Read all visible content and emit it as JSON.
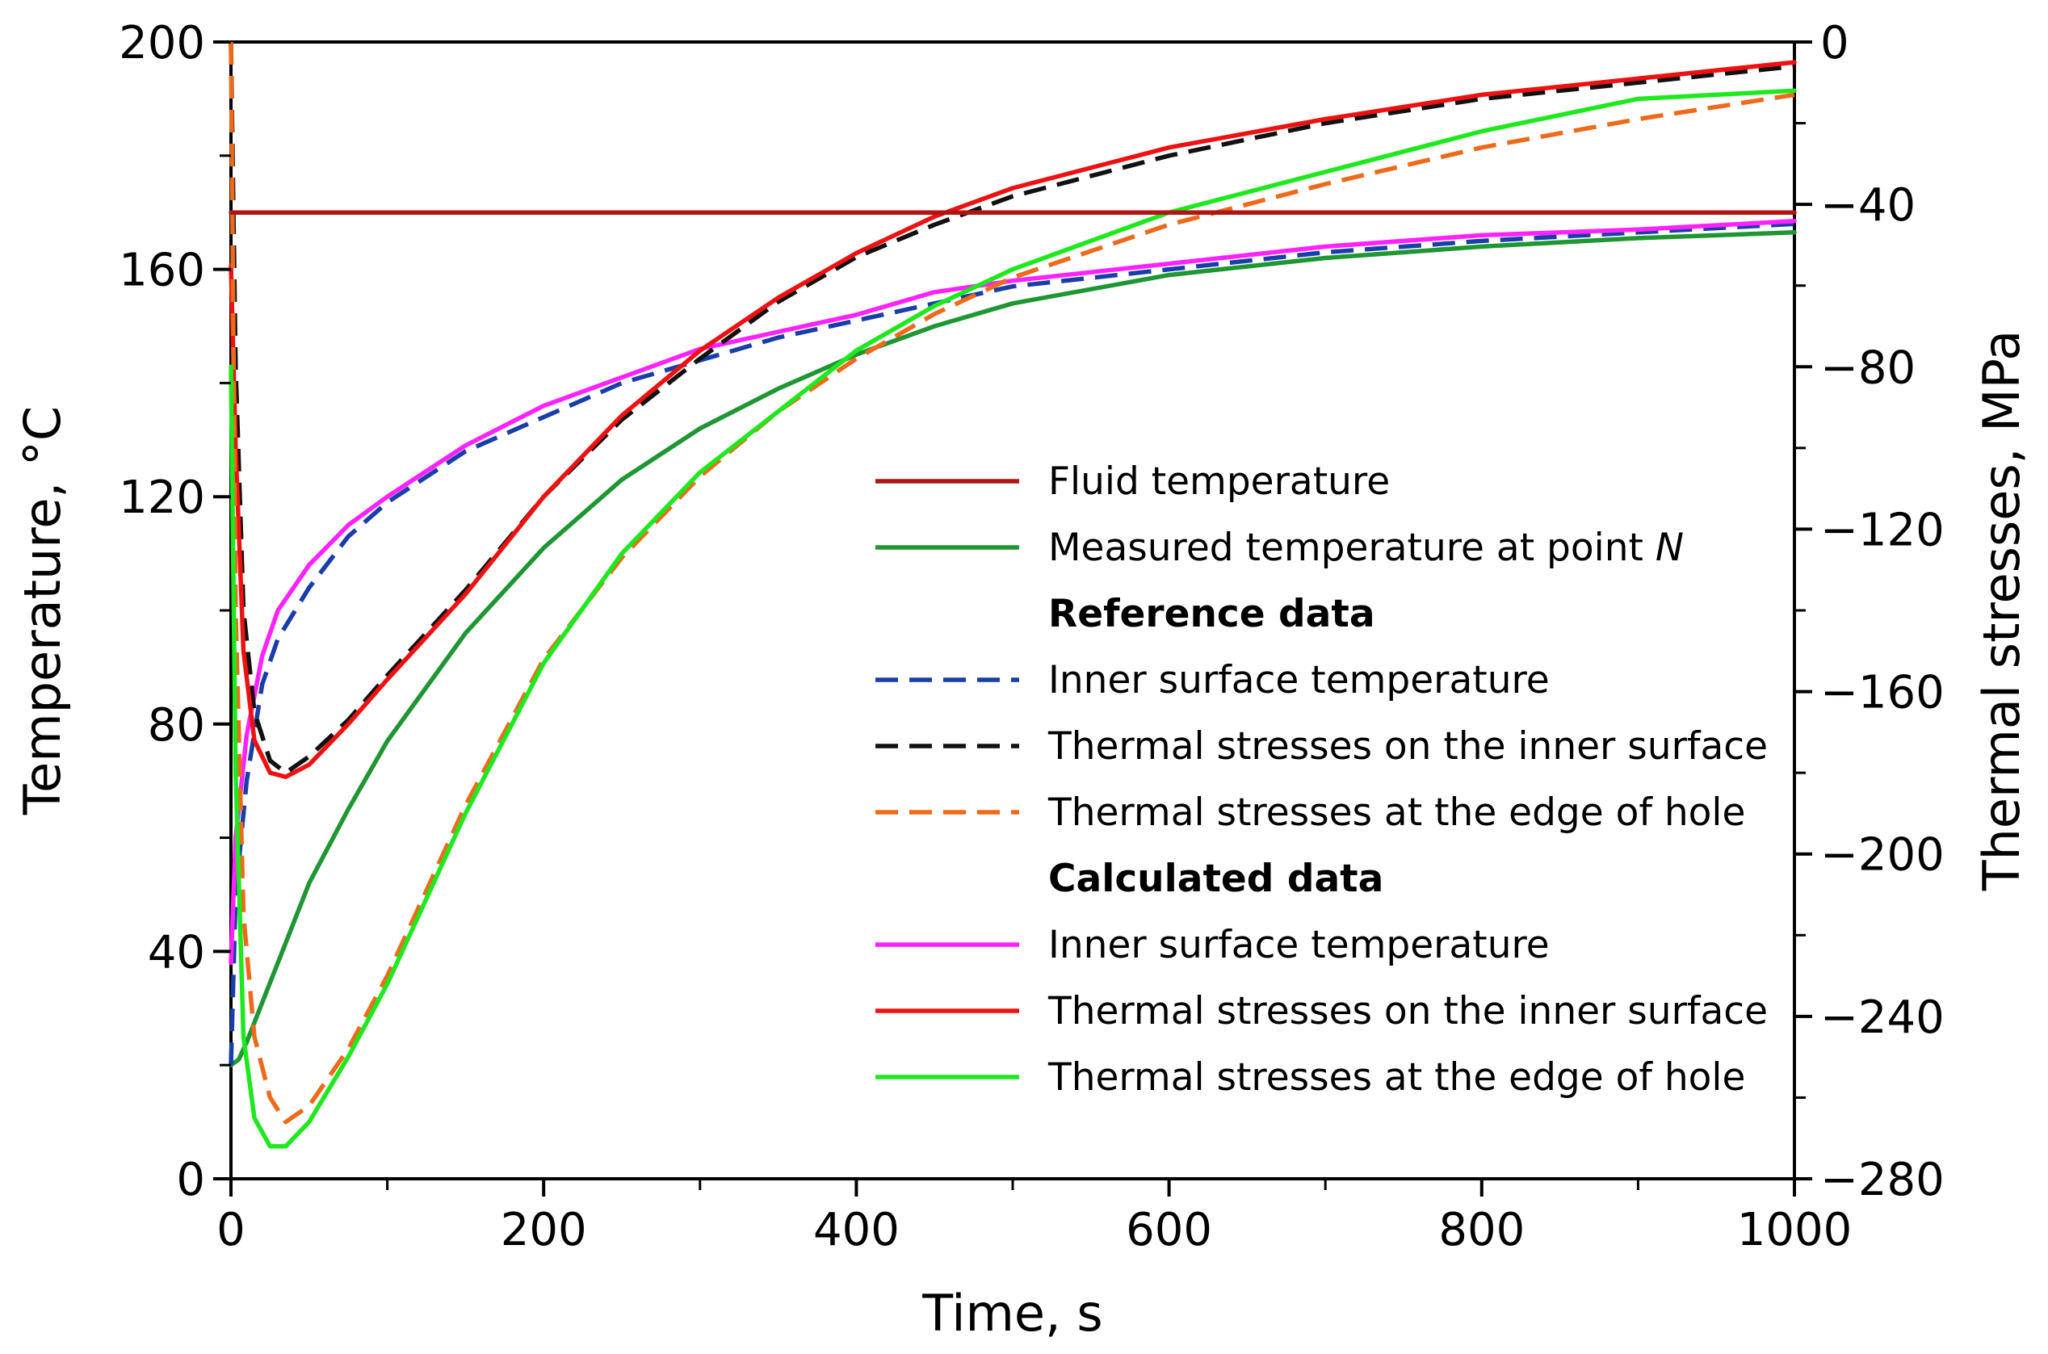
{
  "chart_data": {
    "type": "line",
    "title": "",
    "xlabel": "Time, s",
    "ylabel_left": "Temperature, °C",
    "ylabel_right": "Thermal stresses, MPa",
    "xlim": [
      0,
      1000
    ],
    "ylim_left": [
      0,
      200
    ],
    "ylim_right": [
      -280,
      0
    ],
    "x_ticks": [
      "0",
      "200",
      "400",
      "600",
      "800",
      "1000"
    ],
    "x_tick_values": [
      0,
      200,
      400,
      600,
      800,
      1000
    ],
    "y_left_ticks": [
      "0",
      "40",
      "80",
      "120",
      "160",
      "200"
    ],
    "y_left_tick_values": [
      0,
      40,
      80,
      120,
      160,
      200
    ],
    "y_right_ticks": [
      "−280",
      "−240",
      "−200",
      "−160",
      "−120",
      "−80",
      "−40",
      "0"
    ],
    "y_right_tick_values": [
      -280,
      -240,
      -200,
      -160,
      -120,
      -80,
      -40,
      0
    ],
    "grid": false,
    "legend_position": "center-right",
    "legend": [
      {
        "kind": "entry",
        "series": "fluid",
        "label": "Fluid temperature"
      },
      {
        "kind": "entry",
        "series": "measured",
        "label": "Measured temperature at point ",
        "label_italic": "N"
      },
      {
        "kind": "heading",
        "label": "Reference data"
      },
      {
        "kind": "entry",
        "series": "ref_inner_temp",
        "label": "Inner surface temperature"
      },
      {
        "kind": "entry",
        "series": "ref_stress_inner",
        "label": "Thermal stresses on the inner surface"
      },
      {
        "kind": "entry",
        "series": "ref_stress_hole",
        "label": "Thermal stresses at the edge of hole"
      },
      {
        "kind": "heading",
        "label": "Calculated data"
      },
      {
        "kind": "entry",
        "series": "calc_inner_temp",
        "label": "Inner surface temperature"
      },
      {
        "kind": "entry",
        "series": "calc_stress_inner",
        "label": "Thermal stresses on the inner surface"
      },
      {
        "kind": "entry",
        "series": "calc_stress_hole",
        "label": "Thermal stresses at the edge of hole"
      }
    ],
    "series": [
      {
        "id": "fluid",
        "name": "Fluid temperature",
        "axis": "left",
        "color": "#b01515",
        "dash": "solid",
        "x": [
          0,
          1000
        ],
        "y": [
          170,
          170
        ]
      },
      {
        "id": "measured",
        "name": "Measured temperature at point N",
        "axis": "left",
        "color": "#1e9632",
        "dash": "solid",
        "x": [
          0,
          5,
          10,
          20,
          30,
          50,
          75,
          100,
          150,
          200,
          250,
          300,
          350,
          400,
          450,
          500,
          600,
          700,
          800,
          900,
          1000
        ],
        "y": [
          20,
          21,
          24,
          31,
          38,
          52,
          65,
          77,
          96,
          111,
          123,
          132,
          139,
          145,
          150,
          154,
          159,
          162,
          164,
          165.5,
          166.5
        ]
      },
      {
        "id": "ref_inner_temp",
        "name": "Inner surface temperature (reference)",
        "axis": "left",
        "color": "#1a3ea8",
        "dash": "dashed",
        "x": [
          0,
          3,
          10,
          20,
          30,
          50,
          75,
          100,
          150,
          200,
          250,
          300,
          350,
          400,
          450,
          500,
          600,
          700,
          800,
          900,
          1000
        ],
        "y": [
          20,
          50,
          70,
          87,
          95,
          104,
          113,
          119,
          128,
          134,
          140,
          144,
          148,
          151,
          154,
          157,
          160,
          163,
          165,
          166.5,
          168
        ]
      },
      {
        "id": "ref_stress_inner",
        "name": "Thermal stresses on the inner surface (reference)",
        "axis": "right",
        "color": "#111111",
        "dash": "dashed",
        "x": [
          0,
          3,
          8,
          15,
          25,
          35,
          50,
          75,
          100,
          150,
          200,
          250,
          300,
          350,
          400,
          450,
          500,
          600,
          700,
          800,
          900,
          1000
        ],
        "y": [
          0,
          -80,
          -140,
          -165,
          -177,
          -180,
          -176,
          -167,
          -156,
          -135,
          -112,
          -93,
          -78,
          -64,
          -53,
          -45,
          -38,
          -28,
          -20,
          -14,
          -10,
          -6
        ]
      },
      {
        "id": "ref_stress_hole",
        "name": "Thermal stresses at the edge of hole (reference)",
        "axis": "right",
        "color": "#ee6a1a",
        "dash": "dashed",
        "x": [
          0,
          3,
          8,
          15,
          25,
          35,
          50,
          75,
          100,
          150,
          200,
          250,
          300,
          350,
          400,
          450,
          500,
          600,
          700,
          800,
          900,
          1000
        ],
        "y": [
          0,
          -140,
          -215,
          -245,
          -260,
          -266,
          -262,
          -248,
          -230,
          -188,
          -152,
          -127,
          -107,
          -91,
          -78,
          -67,
          -58,
          -45,
          -35,
          -26,
          -19,
          -13
        ]
      },
      {
        "id": "calc_inner_temp",
        "name": "Inner surface temperature (calculated)",
        "axis": "left",
        "color": "#ff22ff",
        "dash": "solid",
        "x": [
          0,
          3,
          10,
          20,
          30,
          50,
          75,
          100,
          150,
          200,
          250,
          300,
          350,
          400,
          450,
          500,
          600,
          700,
          800,
          900,
          1000
        ],
        "y": [
          38,
          60,
          78,
          92,
          100,
          108,
          115,
          120,
          129,
          136,
          141,
          146,
          149,
          152,
          156,
          158,
          161,
          164,
          166,
          167,
          168.5
        ]
      },
      {
        "id": "calc_stress_inner",
        "name": "Thermal stresses on the inner surface (calculated)",
        "axis": "right",
        "color": "#ee1111",
        "dash": "solid",
        "x": [
          0,
          3,
          8,
          15,
          25,
          35,
          50,
          75,
          100,
          150,
          200,
          250,
          300,
          350,
          400,
          450,
          500,
          600,
          700,
          800,
          900,
          1000
        ],
        "y": [
          -55,
          -100,
          -150,
          -172,
          -180,
          -181,
          -178,
          -168,
          -157,
          -136,
          -112,
          -92,
          -76,
          -63,
          -52,
          -43,
          -36,
          -26,
          -19,
          -13,
          -9,
          -5
        ]
      },
      {
        "id": "calc_stress_hole",
        "name": "Thermal stresses at the edge of hole (calculated)",
        "axis": "right",
        "color": "#1ee81e",
        "dash": "solid",
        "x": [
          0,
          3,
          8,
          15,
          25,
          35,
          50,
          75,
          100,
          150,
          200,
          250,
          300,
          350,
          400,
          450,
          500,
          600,
          700,
          800,
          900,
          1000
        ],
        "y": [
          -80,
          -180,
          -245,
          -265,
          -272,
          -272,
          -266,
          -250,
          -232,
          -190,
          -153,
          -126,
          -106,
          -91,
          -76,
          -65,
          -56,
          -42,
          -32,
          -22,
          -14,
          -12
        ]
      }
    ]
  }
}
